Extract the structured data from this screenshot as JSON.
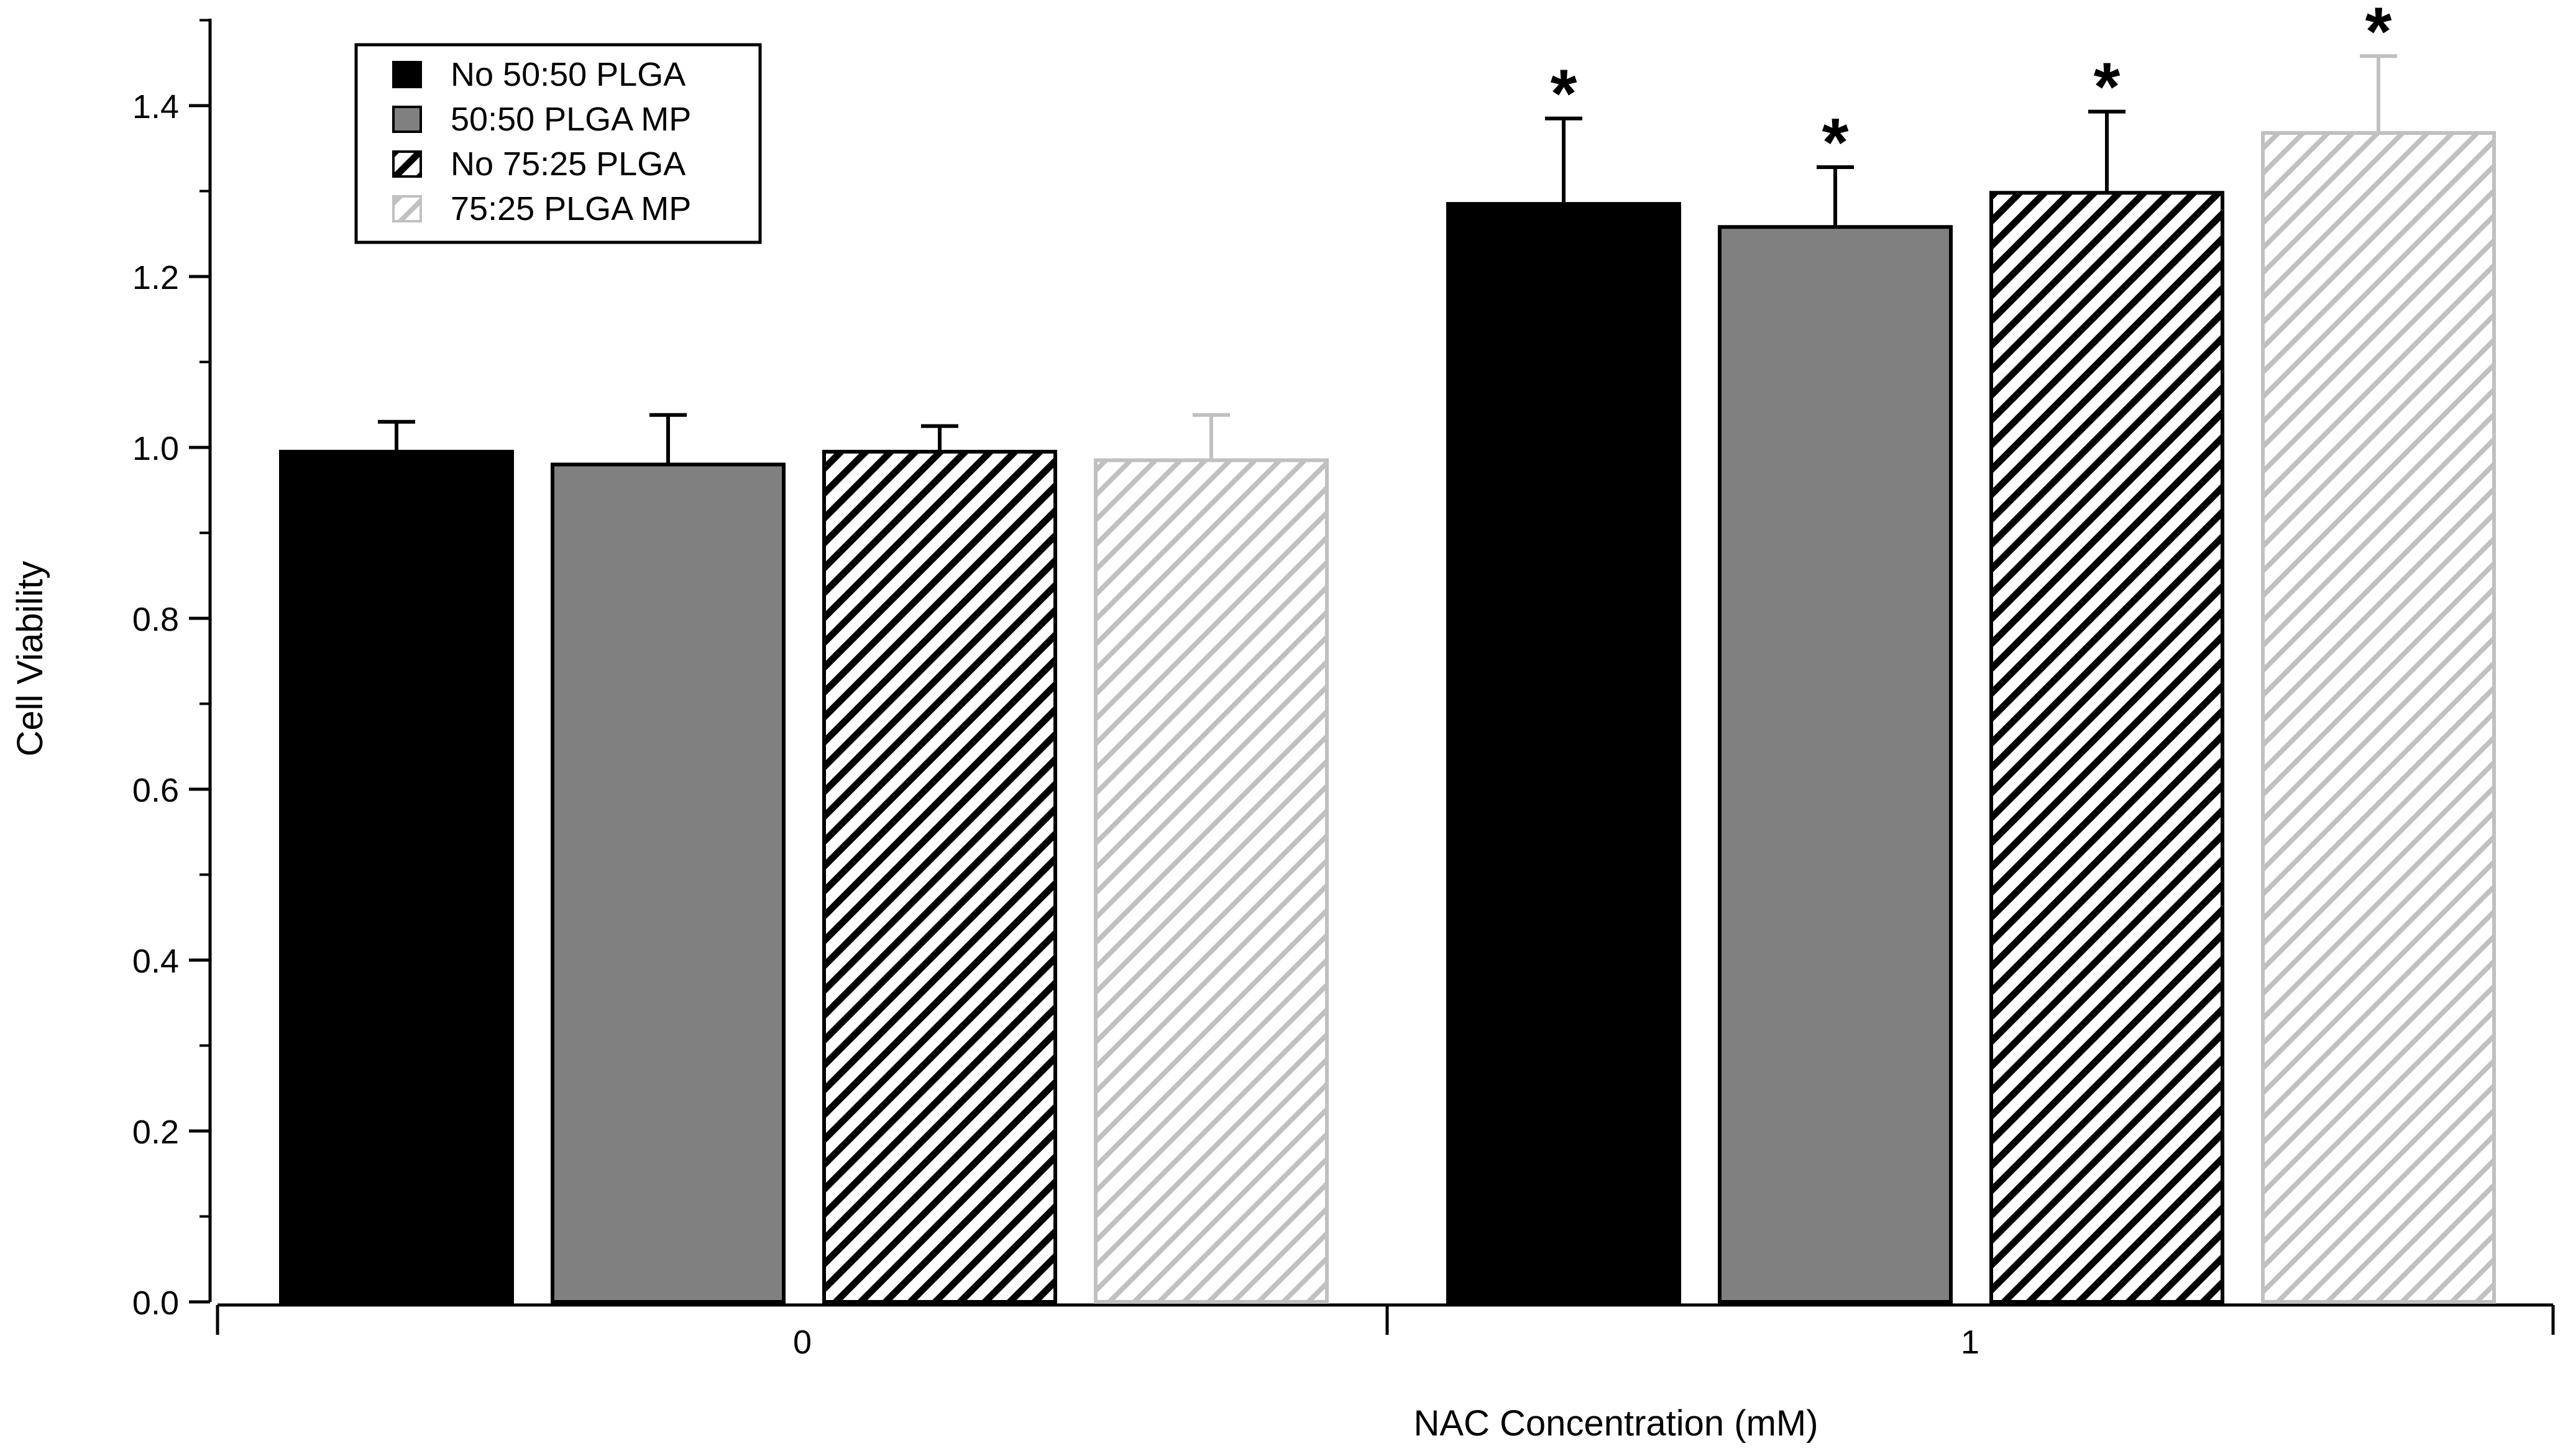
{
  "chart_data": {
    "type": "bar",
    "title": "",
    "xlabel": "NAC Concentration (mM)",
    "ylabel": "Cell Viability",
    "categories": [
      "0",
      "1"
    ],
    "ylim": [
      0,
      1.5
    ],
    "yticks": [
      "0.0",
      "0.2",
      "0.4",
      "0.6",
      "0.8",
      "1.0",
      "1.2",
      "1.4"
    ],
    "grid": false,
    "legend_position": "top-left",
    "significance_marker": "*",
    "series": [
      {
        "name": "No 50:50 PLGA",
        "values": [
          0.995,
          1.285
        ],
        "errors": [
          0.035,
          0.1
        ],
        "significant": [
          false,
          true
        ],
        "color": "#000000",
        "pattern": "solid"
      },
      {
        "name": "50:50 PLGA MP",
        "values": [
          0.98,
          1.258
        ],
        "errors": [
          0.058,
          0.07
        ],
        "significant": [
          false,
          true
        ],
        "color": "#808080",
        "pattern": "solid"
      },
      {
        "name": "No 75:25 PLGA",
        "values": [
          0.995,
          1.298
        ],
        "errors": [
          0.03,
          0.095
        ],
        "significant": [
          false,
          true
        ],
        "color": "#000000",
        "pattern": "hatch"
      },
      {
        "name": "75:25 PLGA MP",
        "values": [
          0.985,
          1.368
        ],
        "errors": [
          0.053,
          0.09
        ],
        "significant": [
          false,
          true
        ],
        "color": "#c0c0c0",
        "pattern": "hatch"
      }
    ]
  }
}
